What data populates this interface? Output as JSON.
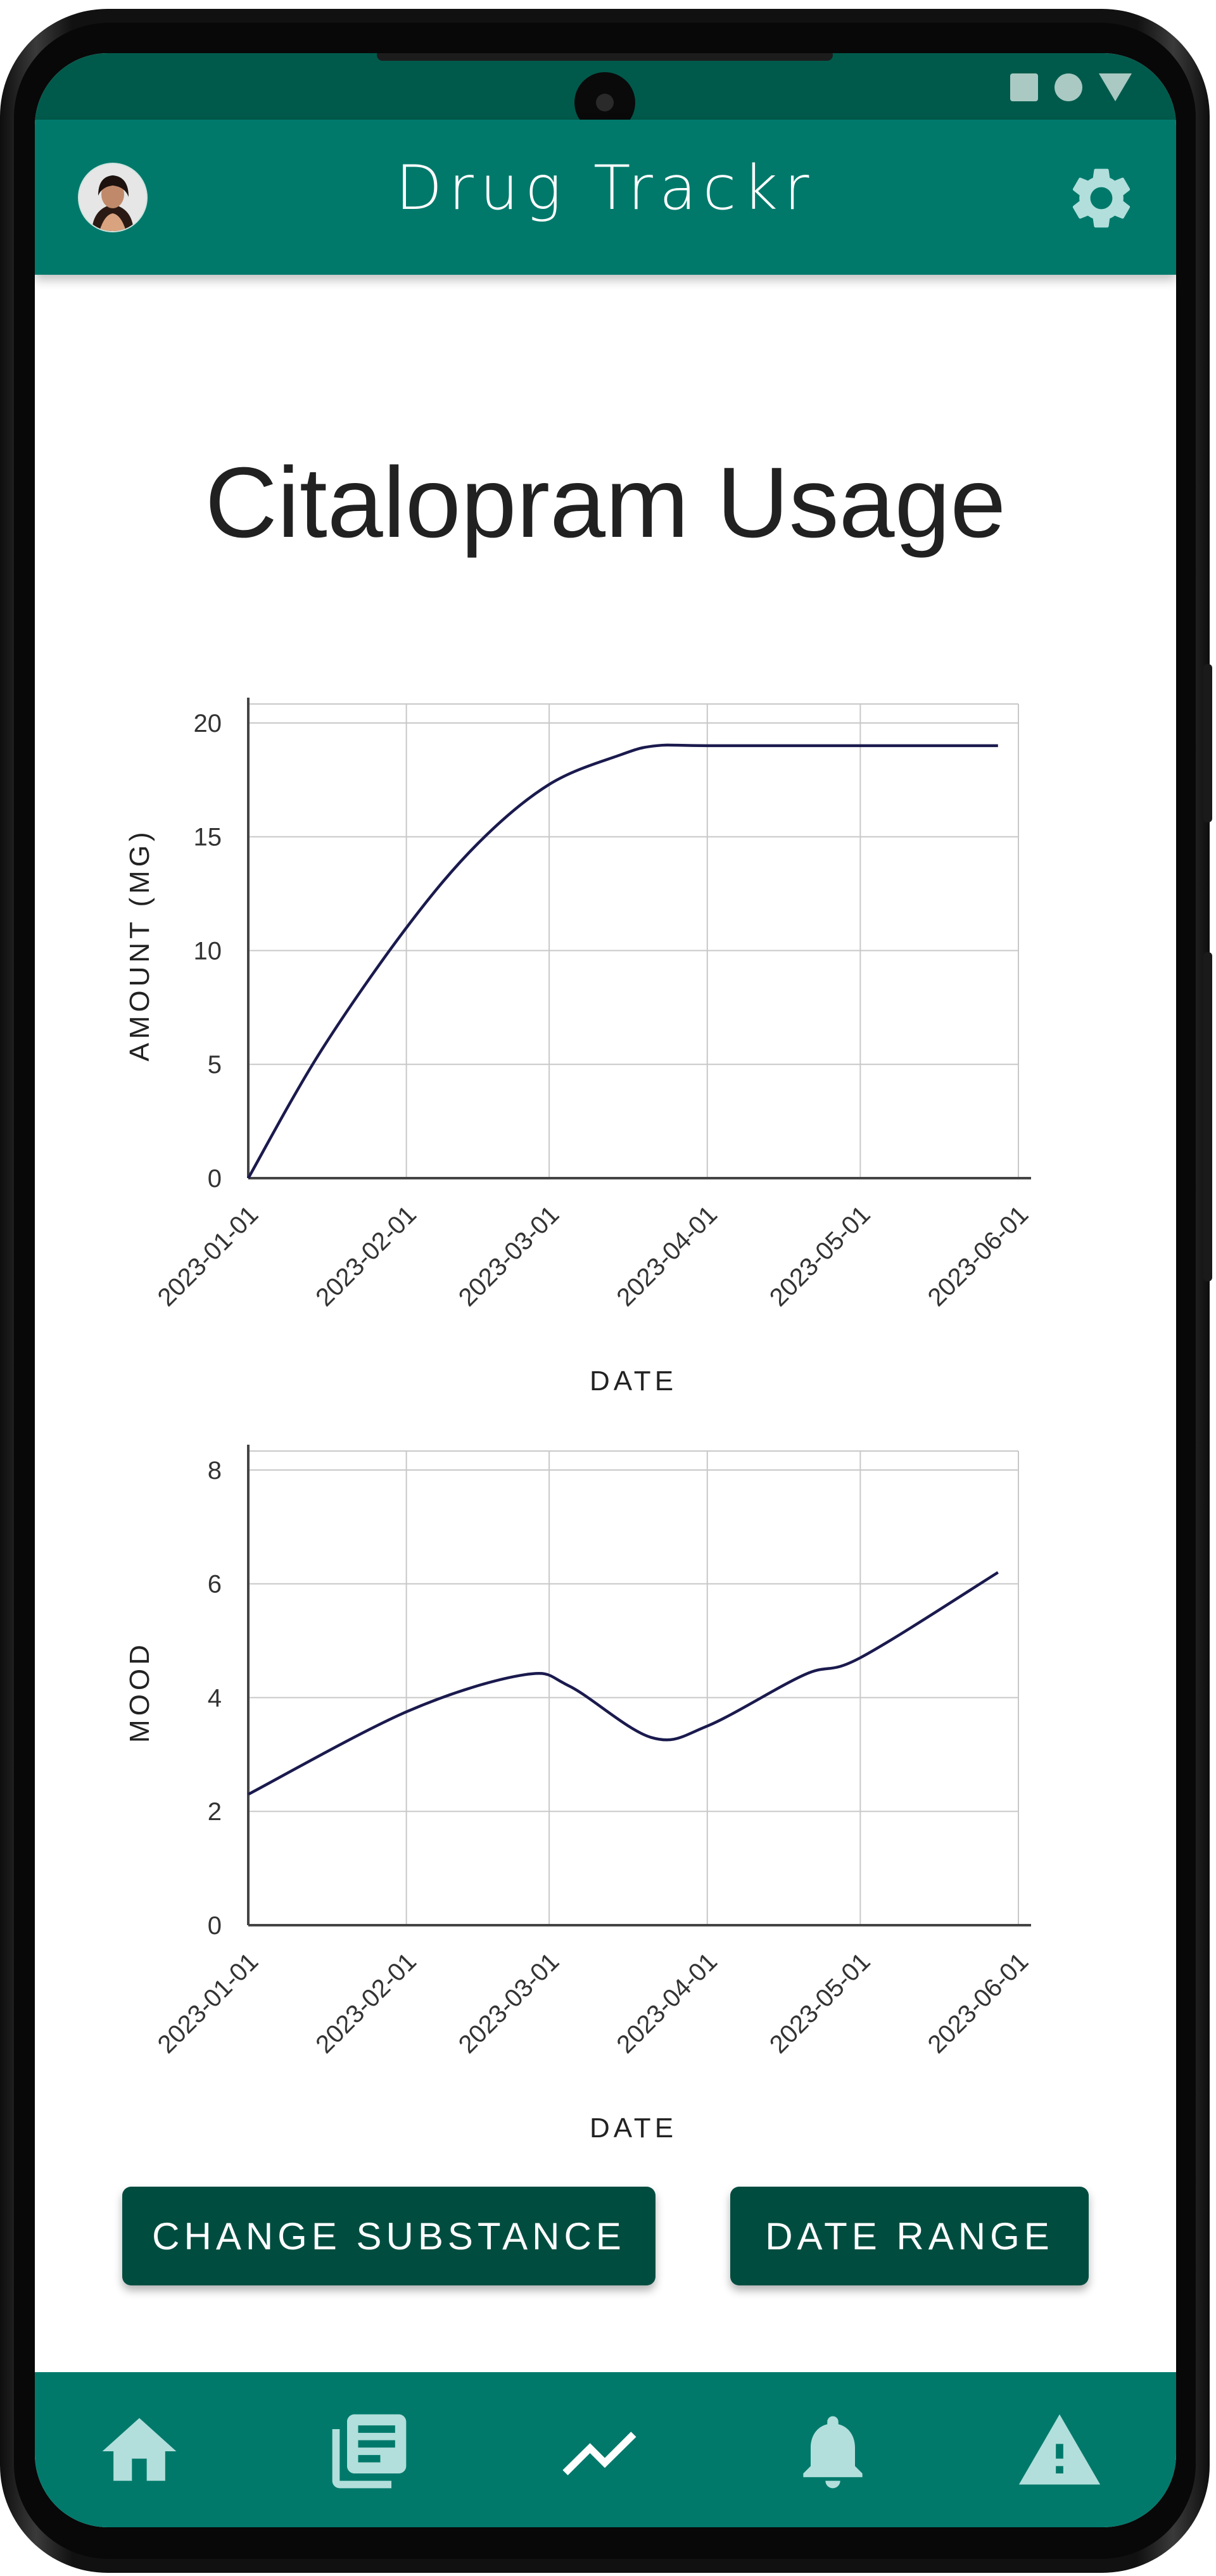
{
  "app": {
    "title": "Drug Trackr",
    "accent_color": "#00796b",
    "status_color": "#005a4b",
    "button_color": "#004d40",
    "avatar_icon": "avatar-photo",
    "settings_icon": "gear-icon"
  },
  "page": {
    "title": "Citalopram Usage"
  },
  "chart_data": [
    {
      "type": "line",
      "title": "",
      "xlabel": "DATE",
      "ylabel": "AMOUNT (MG)",
      "x_ticks": [
        "2023-01-01",
        "2023-02-01",
        "2023-03-01",
        "2023-04-01",
        "2023-05-01",
        "2023-06-01"
      ],
      "y_ticks": [
        "0",
        "5",
        "10",
        "15",
        "20"
      ],
      "ylim": [
        0,
        20.5
      ],
      "grid": true,
      "line_color": "#1a1a4e",
      "series": [
        {
          "x": [
            "2023-01-01",
            "2023-01-15",
            "2023-02-01",
            "2023-02-15",
            "2023-03-01",
            "2023-03-15",
            "2023-03-22",
            "2023-04-01",
            "2023-05-01",
            "2023-05-28"
          ],
          "y": [
            0,
            5.5,
            11,
            14.7,
            17.3,
            18.6,
            19,
            19,
            19,
            19
          ]
        }
      ]
    },
    {
      "type": "line",
      "title": "",
      "xlabel": "DATE",
      "ylabel": "MOOD",
      "x_ticks": [
        "2023-01-01",
        "2023-02-01",
        "2023-03-01",
        "2023-04-01",
        "2023-05-01",
        "2023-06-01"
      ],
      "y_ticks": [
        "0",
        "2",
        "4",
        "6",
        "8"
      ],
      "ylim": [
        0,
        8.2
      ],
      "grid": true,
      "line_color": "#1a1a4e",
      "series": [
        {
          "x": [
            "2023-01-01",
            "2023-02-01",
            "2023-02-24",
            "2023-03-05",
            "2023-03-21",
            "2023-04-01",
            "2023-04-20",
            "2023-05-01",
            "2023-05-28"
          ],
          "y": [
            2.3,
            3.75,
            4.4,
            4.2,
            3.3,
            3.5,
            4.4,
            4.7,
            6.2
          ]
        }
      ]
    }
  ],
  "actions": {
    "change_substance": "CHANGE SUBSTANCE",
    "date_range": "DATE RANGE"
  },
  "bottom_nav": {
    "items": [
      {
        "icon": "home-icon"
      },
      {
        "icon": "journal-icon"
      },
      {
        "icon": "trending-icon",
        "active": true
      },
      {
        "icon": "bell-icon"
      },
      {
        "icon": "warning-icon"
      }
    ],
    "icon_color": "#b2dfdb",
    "active_color": "#ffffff"
  }
}
